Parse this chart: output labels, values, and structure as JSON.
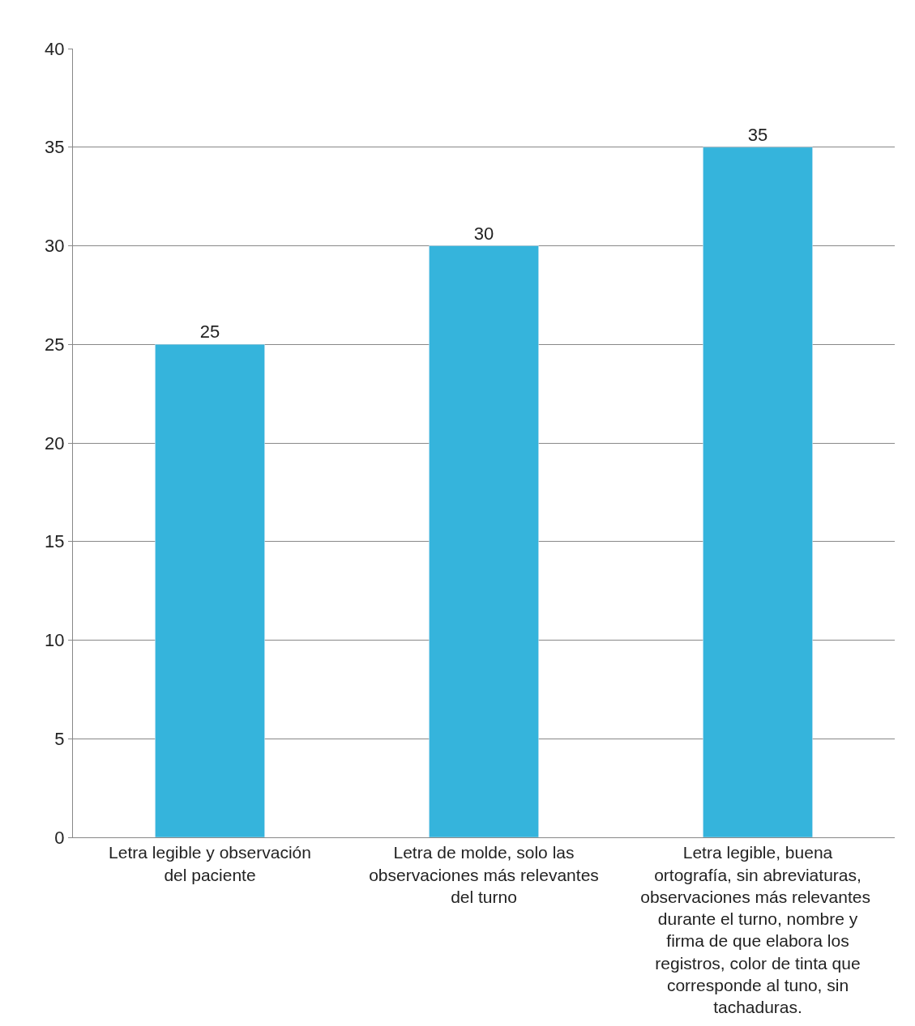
{
  "chart_data": {
    "type": "bar",
    "categories": [
      "Letra legible y observación del paciente",
      "Letra de molde, solo las observaciones más relevantes del turno",
      "Letra legible, buena ortografía, sin abreviaturas, observaciones más relevantes  durante el turno, nombre y firma de que elabora los registros, color de tinta que corresponde al tuno, sin tachaduras."
    ],
    "values": [
      25,
      30,
      35
    ],
    "color": "#35b4dc",
    "ylim": [
      0,
      40
    ],
    "yticks": [
      0,
      5,
      10,
      15,
      20,
      25,
      30,
      35,
      40
    ],
    "grid": "y",
    "data_labels": true
  }
}
